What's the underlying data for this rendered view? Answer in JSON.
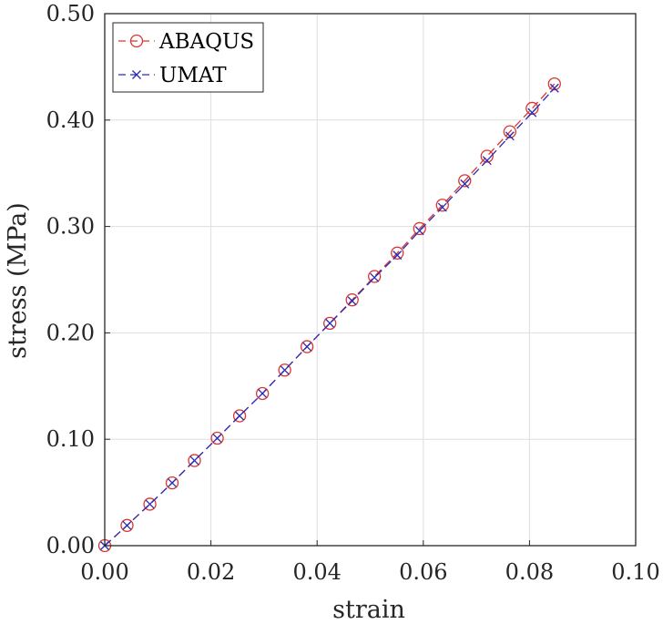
{
  "chart_data": {
    "type": "line",
    "xlabel": "strain",
    "ylabel": "stress (MPa)",
    "xlim": [
      0,
      0.1
    ],
    "ylim": [
      0,
      0.5
    ],
    "xticks": [
      "0.00",
      "0.02",
      "0.04",
      "0.06",
      "0.08",
      "0.10"
    ],
    "yticks": [
      "0.00",
      "0.10",
      "0.20",
      "0.30",
      "0.40",
      "0.50"
    ],
    "grid": true,
    "legend_position": "top-left",
    "series": [
      {
        "name": "ABAQUS",
        "color": "#d9362f",
        "marker": "circle",
        "line": "dashed",
        "x": [
          0.0,
          0.0042,
          0.0085,
          0.0127,
          0.0169,
          0.0212,
          0.0254,
          0.0297,
          0.0339,
          0.0381,
          0.0424,
          0.0466,
          0.0508,
          0.0551,
          0.0593,
          0.0636,
          0.0678,
          0.072,
          0.0763,
          0.0805,
          0.0847
        ],
        "y": [
          0.0,
          0.019,
          0.039,
          0.059,
          0.08,
          0.101,
          0.122,
          0.143,
          0.165,
          0.187,
          0.209,
          0.231,
          0.253,
          0.275,
          0.298,
          0.32,
          0.343,
          0.366,
          0.389,
          0.411,
          0.434
        ]
      },
      {
        "name": "UMAT",
        "color": "#2a2ab3",
        "marker": "x",
        "line": "dashed",
        "x": [
          0.0,
          0.0042,
          0.0085,
          0.0127,
          0.0169,
          0.0212,
          0.0254,
          0.0297,
          0.0339,
          0.0381,
          0.0424,
          0.0466,
          0.0508,
          0.0551,
          0.0593,
          0.0636,
          0.0678,
          0.072,
          0.0763,
          0.0805,
          0.0847
        ],
        "y": [
          0.0,
          0.019,
          0.039,
          0.059,
          0.08,
          0.101,
          0.122,
          0.143,
          0.165,
          0.187,
          0.209,
          0.23,
          0.252,
          0.273,
          0.296,
          0.318,
          0.34,
          0.362,
          0.385,
          0.407,
          0.43
        ]
      }
    ]
  }
}
